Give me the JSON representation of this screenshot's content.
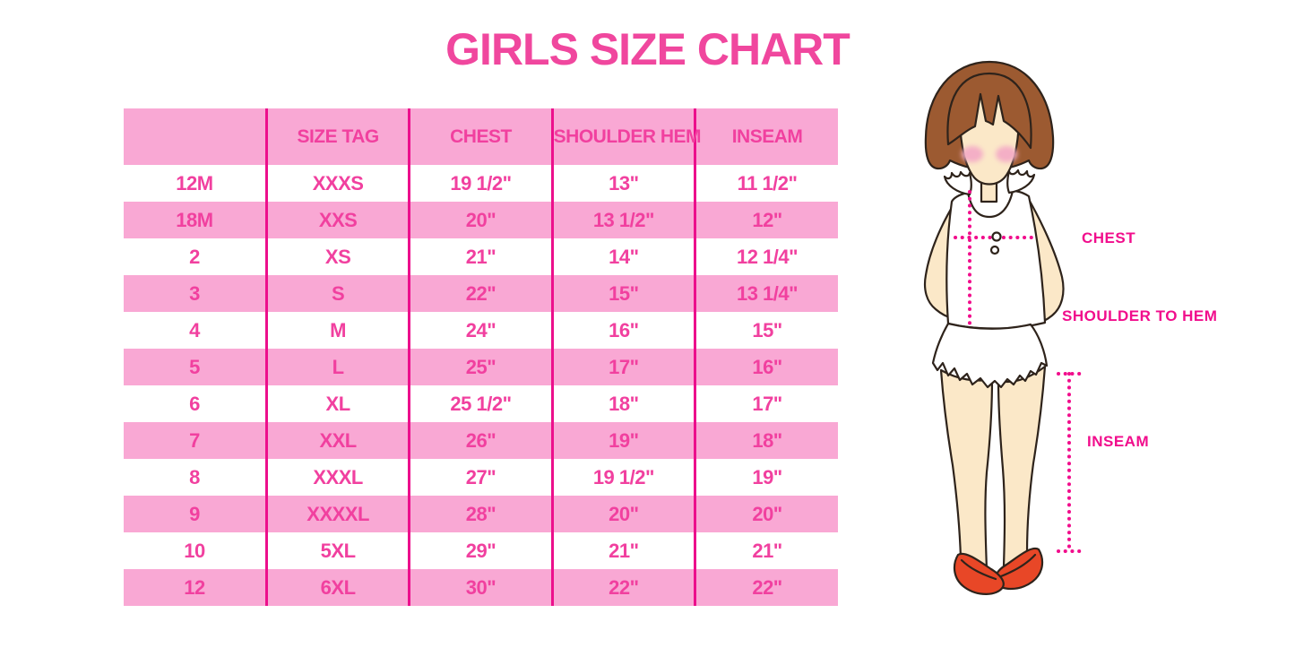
{
  "title": "GIRLS SIZE CHART",
  "colors": {
    "title_pink": "#F0479E",
    "table_text_pink": "#F1409F",
    "row_band_pink": "#F9A8D4",
    "divider_magenta": "#EC0F8C",
    "measure_magenta": "#F10D8C",
    "hair_brown": "#9C5A31",
    "skin": "#FBE8C8",
    "blush_pink": "#F4AFC6",
    "shoe_red": "#E84727",
    "outline_dark": "#2E231B"
  },
  "chart_data": {
    "type": "table",
    "title": "GIRLS SIZE CHART",
    "columns": [
      "",
      "SIZE TAG",
      "CHEST",
      "SHOULDER HEM",
      "INSEAM"
    ],
    "rows": [
      [
        "12M",
        "XXXS",
        "19 1/2\"",
        "13\"",
        "11 1/2\""
      ],
      [
        "18M",
        "XXS",
        "20\"",
        "13 1/2\"",
        "12\""
      ],
      [
        "2",
        "XS",
        "21\"",
        "14\"",
        "12 1/4\""
      ],
      [
        "3",
        "S",
        "22\"",
        "15\"",
        "13 1/4\""
      ],
      [
        "4",
        "M",
        "24\"",
        "16\"",
        "15\""
      ],
      [
        "5",
        "L",
        "25\"",
        "17\"",
        "16\""
      ],
      [
        "6",
        "XL",
        "25 1/2\"",
        "18\"",
        "17\""
      ],
      [
        "7",
        "XXL",
        "26\"",
        "19\"",
        "18\""
      ],
      [
        "8",
        "XXXL",
        "27\"",
        "19 1/2\"",
        "19\""
      ],
      [
        "9",
        "XXXXL",
        "28\"",
        "20\"",
        "20\""
      ],
      [
        "10",
        "5XL",
        "29\"",
        "21\"",
        "21\""
      ],
      [
        "12",
        "6XL",
        "30\"",
        "22\"",
        "22\""
      ]
    ],
    "striping": "header and alternate rows pink, others white",
    "legend_position": "none",
    "grid": "vertical magenta dividers only"
  },
  "diagram": {
    "labels": {
      "chest": "CHEST",
      "shoulder_to_hem": "SHOULDER TO HEM",
      "inseam": "INSEAM"
    }
  }
}
